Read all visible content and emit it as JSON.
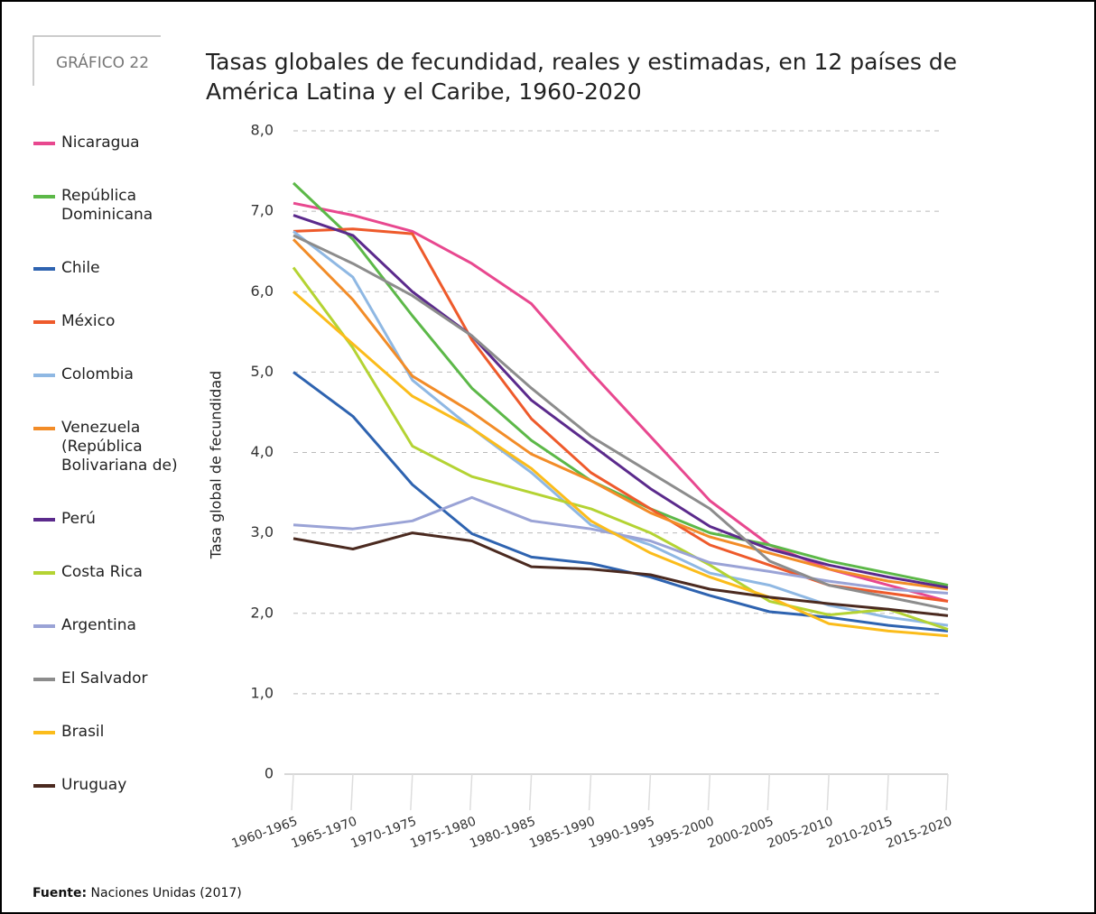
{
  "label": "GRÁFICO 22",
  "source": {
    "label": "Fuente:",
    "text": "Naciones Unidas (2017)"
  },
  "chart_data": {
    "type": "line",
    "title": "Tasas globales de fecundidad, reales y estimadas, en 12 países de América Latina y el Caribe, 1960-2020",
    "y_label": "Tasa global de fecundidad",
    "categories": [
      "1960-1965",
      "1965-1970",
      "1970-1975",
      "1975-1980",
      "1980-1985",
      "1985-1990",
      "1990-1995",
      "1995-2000",
      "2000-2005",
      "2005-2010",
      "2010-2015",
      "2015-2020"
    ],
    "ylim": [
      0,
      8
    ],
    "yticks": [
      0,
      {
        "value": 1,
        "label": "1,0"
      },
      {
        "value": 2,
        "label": "2,0"
      },
      {
        "value": 3,
        "label": "3,0"
      },
      {
        "value": 4,
        "label": "4,0"
      },
      {
        "value": 5,
        "label": "5,0"
      },
      {
        "value": 6,
        "label": "6,0"
      },
      {
        "value": 7,
        "label": "7,0"
      },
      {
        "value": 8,
        "label": "8,0"
      }
    ],
    "grid": true,
    "series": [
      {
        "name": "Nicaragua",
        "color": "#e8488f",
        "values": [
          7.1,
          6.95,
          6.75,
          6.35,
          5.85,
          5.0,
          4.2,
          3.4,
          2.85,
          2.55,
          2.35,
          2.15
        ]
      },
      {
        "name": "República Dominicana",
        "color": "#5cb848",
        "values": [
          7.35,
          6.65,
          5.7,
          4.8,
          4.15,
          3.65,
          3.3,
          3.0,
          2.85,
          2.65,
          2.5,
          2.35
        ]
      },
      {
        "name": "Chile",
        "color": "#2e63b0",
        "values": [
          5.0,
          4.45,
          3.6,
          2.99,
          2.7,
          2.62,
          2.45,
          2.22,
          2.02,
          1.95,
          1.85,
          1.78
        ]
      },
      {
        "name": "México",
        "color": "#ee5a2b",
        "values": [
          6.75,
          6.78,
          6.72,
          5.4,
          4.42,
          3.75,
          3.3,
          2.85,
          2.6,
          2.35,
          2.25,
          2.15
        ]
      },
      {
        "name": "Colombia",
        "color": "#8fb8e3",
        "values": [
          6.75,
          6.18,
          4.9,
          4.3,
          3.75,
          3.1,
          2.85,
          2.5,
          2.35,
          2.1,
          1.95,
          1.85
        ]
      },
      {
        "name": "Venezuela (República Bolivariana de)",
        "color": "#f28c28",
        "values": [
          6.65,
          5.9,
          4.95,
          4.5,
          3.98,
          3.65,
          3.25,
          2.95,
          2.75,
          2.55,
          2.4,
          2.3
        ]
      },
      {
        "name": "Perú",
        "color": "#5b2a8c",
        "values": [
          6.95,
          6.7,
          6.0,
          5.45,
          4.65,
          4.1,
          3.55,
          3.08,
          2.8,
          2.6,
          2.45,
          2.32
        ]
      },
      {
        "name": "Costa Rica",
        "color": "#b4d333",
        "values": [
          6.3,
          5.3,
          4.08,
          3.7,
          3.5,
          3.3,
          3.0,
          2.6,
          2.15,
          1.98,
          2.05,
          1.8
        ]
      },
      {
        "name": "Argentina",
        "color": "#9aa3d6",
        "values": [
          3.1,
          3.05,
          3.15,
          3.44,
          3.15,
          3.05,
          2.9,
          2.63,
          2.52,
          2.4,
          2.3,
          2.25
        ]
      },
      {
        "name": "El Salvador",
        "color": "#8c8c8c",
        "values": [
          6.7,
          6.35,
          5.95,
          5.45,
          4.8,
          4.2,
          3.75,
          3.3,
          2.65,
          2.35,
          2.2,
          2.05
        ]
      },
      {
        "name": "Brasil",
        "color": "#fbbc1b",
        "values": [
          6.0,
          5.35,
          4.7,
          4.3,
          3.8,
          3.15,
          2.75,
          2.45,
          2.2,
          1.87,
          1.78,
          1.72
        ]
      },
      {
        "name": "Uruguay",
        "color": "#4b2a20",
        "values": [
          2.93,
          2.8,
          3.0,
          2.9,
          2.58,
          2.55,
          2.48,
          2.3,
          2.2,
          2.12,
          2.05,
          1.97
        ]
      }
    ]
  }
}
